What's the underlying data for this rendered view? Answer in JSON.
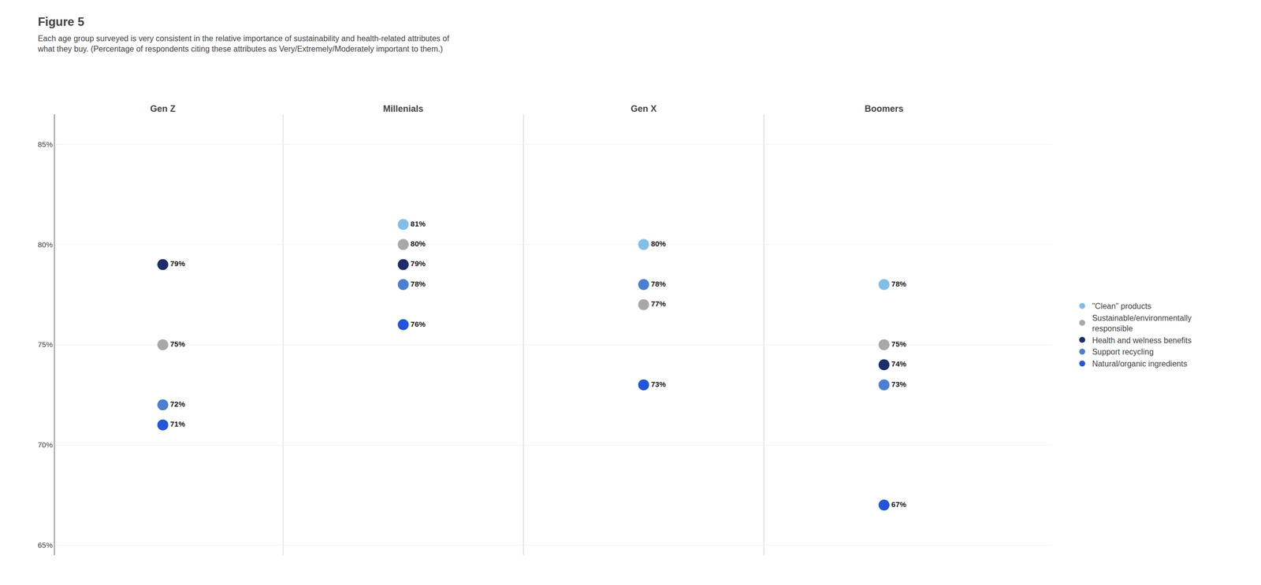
{
  "chart_data": {
    "type": "dot",
    "title": "Figure 5",
    "subtitle": "Each age group surveyed is very consistent in the relative importance of sustainability and health-related attributes of\nwhat they buy. (Percentage of respondents citing these attributes as Very/Extremely/Moderately important to them.)",
    "categories": [
      "Gen Z",
      "Millenials",
      "Gen X",
      "Boomers"
    ],
    "series": [
      {
        "name": "\"Clean\" products",
        "color": "#82bfe8",
        "values": [
          null,
          81,
          80,
          78
        ],
        "value_labels": [
          null,
          "81%",
          "80%",
          "78%"
        ]
      },
      {
        "name": "Sustainable/environmentally\nresponsible",
        "color": "#a8a8a8",
        "values": [
          75,
          80,
          77,
          75
        ],
        "value_labels": [
          "75%",
          "80%",
          "77%",
          "75%"
        ]
      },
      {
        "name": "Health and welness benefits",
        "color": "#1a2e6b",
        "values": [
          79,
          79,
          null,
          74
        ],
        "value_labels": [
          "79%",
          "79%",
          null,
          "74%"
        ]
      },
      {
        "name": "Support recycling",
        "color": "#4a7fd4",
        "values": [
          72,
          78,
          78,
          73
        ],
        "value_labels": [
          "72%",
          "78%",
          "78%",
          "73%"
        ]
      },
      {
        "name": "Natural/organic ingredients",
        "color": "#2255dd",
        "values": [
          71,
          76,
          73,
          67
        ],
        "value_labels": [
          "71%",
          "76%",
          "73%",
          "67%"
        ]
      }
    ],
    "ylim": [
      64.5,
      86.5
    ],
    "yticks": [
      {
        "value": 65,
        "label": "65%"
      },
      {
        "value": 70,
        "label": "70%"
      },
      {
        "value": 75,
        "label": "75%"
      },
      {
        "value": 80,
        "label": "80%"
      },
      {
        "value": 85,
        "label": "85%"
      }
    ],
    "grid": true,
    "legend": "right",
    "data_labels": true
  }
}
